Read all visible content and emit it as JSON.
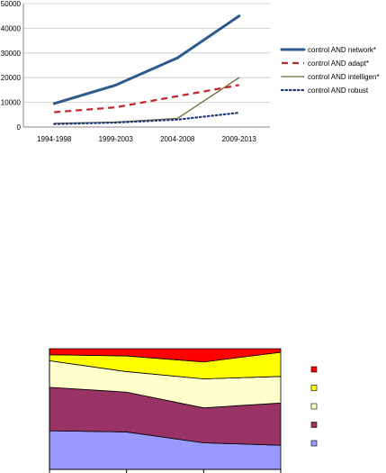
{
  "chart_data": [
    {
      "type": "line",
      "categories": [
        "1994-1998",
        "1999-2003",
        "2004-2008",
        "2009-2013"
      ],
      "ylim": [
        0,
        50000
      ],
      "yticks": [
        0,
        10000,
        20000,
        30000,
        40000,
        50000
      ],
      "grid": true,
      "legend_position": "right",
      "series": [
        {
          "name": "control AND network*",
          "values": [
            9500,
            17000,
            28000,
            45000
          ],
          "color": "#2e5a8e",
          "style": "solid-thick"
        },
        {
          "name": "control AND adapt*",
          "values": [
            6000,
            8000,
            12500,
            17000
          ],
          "color": "#c0282d",
          "style": "dashed"
        },
        {
          "name": "control AND intelligen*",
          "values": [
            1500,
            2000,
            3500,
            20000
          ],
          "color": "#6b6b3a",
          "style": "solid-thin"
        },
        {
          "name": "control AND robust",
          "values": [
            1200,
            1800,
            3000,
            5800
          ],
          "color": "#1f3a7a",
          "style": "dotted"
        }
      ]
    },
    {
      "type": "area",
      "stacked": true,
      "percent": true,
      "points": 4,
      "grid": false,
      "legend_position": "right",
      "series": [
        {
          "name": "",
          "values": [
            32,
            31,
            22,
            20
          ],
          "color": "#9999ff"
        },
        {
          "name": "",
          "values": [
            36,
            33,
            29,
            35
          ],
          "color": "#993366"
        },
        {
          "name": "",
          "values": [
            22,
            17,
            24,
            22
          ],
          "color": "#ffffcc"
        },
        {
          "name": "",
          "values": [
            5,
            13,
            14,
            20
          ],
          "color": "#ffff00"
        },
        {
          "name": "",
          "values": [
            5,
            6,
            11,
            3
          ],
          "color": "#ff0000"
        }
      ]
    }
  ]
}
